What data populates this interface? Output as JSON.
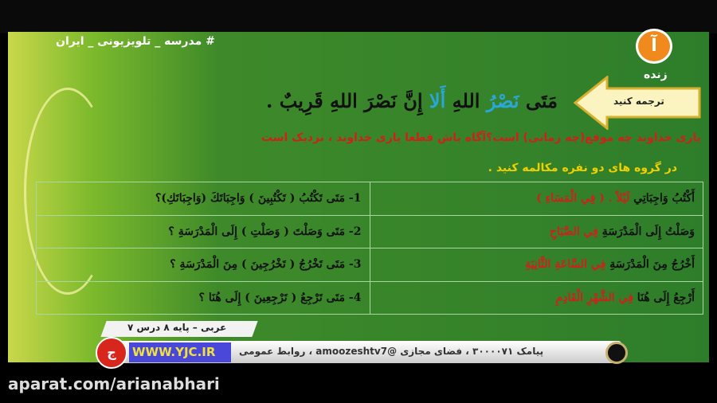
{
  "channel": {
    "hashtag": "# مدرسه _ تلویزیونی _ ایران",
    "live": "زنده",
    "logo": "آ"
  },
  "slide": {
    "arrow_label": "ترجمه کنید",
    "verse_parts": [
      "مَتَى",
      "نَصْرُ",
      "اللهِ",
      "أَلا",
      "إِنَّ نَصْرَ اللهِ قَرِيبٌ ."
    ],
    "translation": "یاری خداوند چه موقع(چه زمانی) است؟آگاه باش قطعا یاری خداوند ، نزدیک است",
    "instruction": "در گروه های دو نفره مکالمه کنید .",
    "rows": [
      {
        "q": "1- مَتَى تَكْتُبُ ( تَكْتُبِينَ ) وَاجِبَاتَكَ (وَاجِبَاتَكِ)؟",
        "a_main": "أَكْتُبُ وَاجِبَاتِي",
        "a_red": "لَيْلاً . ( فِي الْمَسَاءِ )"
      },
      {
        "q": "2- مَتَى وَصَلْتَ ( وَصَلْتِ ) إِلَى الْمَدْرَسَةِ ؟",
        "a_main": "وَصَلْتُ إِلَى الْمَدْرَسَةِ",
        "a_red": "فِي الصَّبَاحِ"
      },
      {
        "q": "3- مَتَى تَخْرُجُ ( تَخْرُجِينَ ) مِنَ الْمَدْرَسَةِ ؟",
        "a_main": "أَخْرُجُ مِنَ الْمَدْرَسَةِ",
        "a_red": "فِي السَّاعَةِ الثَّانِيَةِ"
      },
      {
        "q": "4- مَتَى تَرْجِعُ ( تَرْجِعِينَ ) إِلَى هُنَا ؟",
        "a_main": "أَرْجِعُ إِلَى هُنَا",
        "a_red": "فِي الشَّهْرِ الْقَادِمِ"
      }
    ]
  },
  "lower_third": {
    "lesson": "عربی – پایه ۸ درس ۷",
    "ticker": "پیامک ۳۰۰۰۰۷۱ ، فضای مجازی @amoozeshtv7 ، روابط عمومی",
    "site": "WWW.YJC.IR",
    "yjc_logo": "ج"
  },
  "watermark": "aparat.com/arianabhari",
  "colors": {
    "green": "#2e7d2a",
    "red": "#d0201a",
    "yellow": "#f0d000",
    "accent_blue": "#2aa6d8",
    "orange": "#f08a1c"
  }
}
